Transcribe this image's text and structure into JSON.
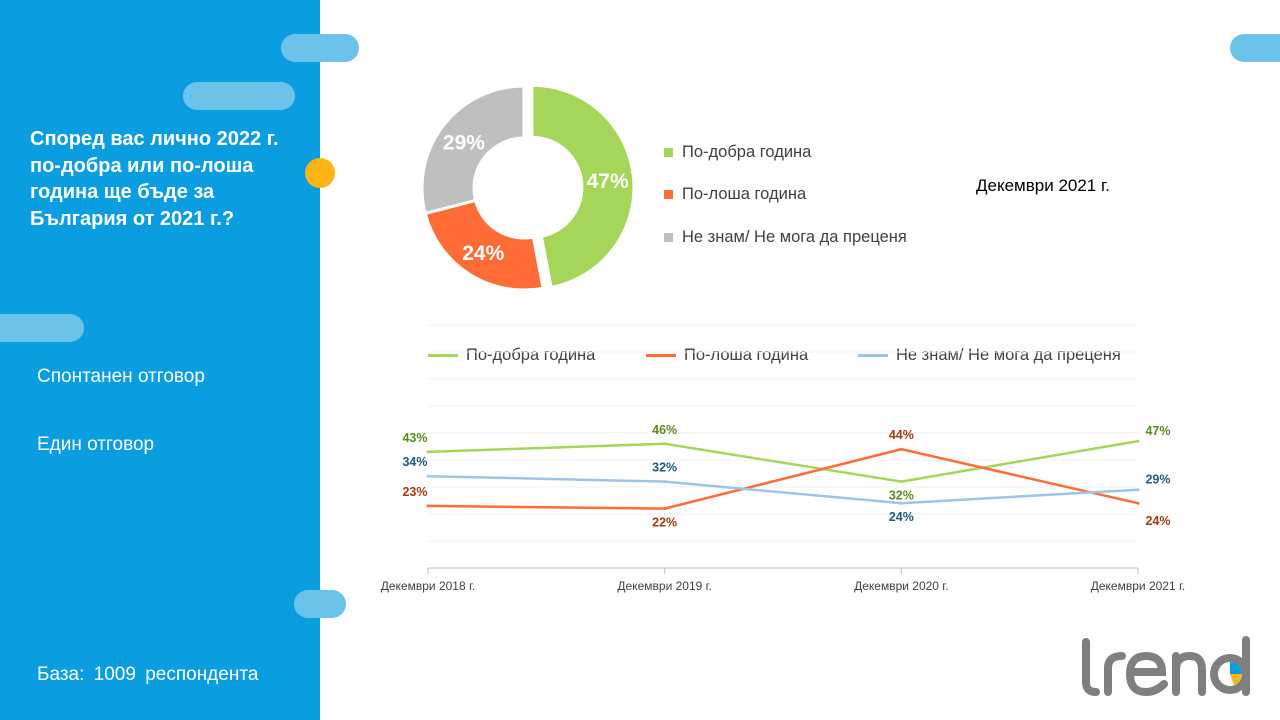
{
  "question": "Според вас лично 2022 г. по-добра или по-лоша година ще бъде за България от 2021 г.?",
  "notes": [
    "Спонтанен отговор",
    "Един отговор"
  ],
  "base": "База:  1009  респондента",
  "period_label": "Декември 2021 г.",
  "brand": "trend",
  "colors": {
    "better": "#a5d65a",
    "worse": "#ff6c36",
    "dontknow": "#bfbfbf",
    "dontknow_line": "#9dc3e6",
    "sidebar": "#0a9ee0",
    "accent": "#fdb515"
  },
  "chart_data": [
    {
      "type": "pie",
      "subtype": "donut",
      "categories": [
        "По-добра година",
        "По-лоша година",
        "Не знам/ Не мога да преценя"
      ],
      "values": [
        47,
        24,
        29
      ],
      "labels": [
        "47%",
        "24%",
        "29%"
      ],
      "legend": "right"
    },
    {
      "type": "line",
      "x": [
        "Декември 2018 г.",
        "Декември 2019 г.",
        "Декември 2020 г.",
        "Декември 2021 г."
      ],
      "series": [
        {
          "name": "По-добра година",
          "values": [
            43,
            46,
            32,
            47
          ],
          "labels": [
            "43%",
            "46%",
            "32%",
            "47%"
          ]
        },
        {
          "name": "По-лоша година",
          "values": [
            23,
            22,
            44,
            24
          ],
          "labels": [
            "23%",
            "22%",
            "44%",
            "24%"
          ]
        },
        {
          "name": "Не знам/ Не мога да преценя",
          "values": [
            34,
            32,
            24,
            29
          ],
          "labels": [
            "34%",
            "32%",
            "24%",
            "29%"
          ]
        }
      ],
      "ylim": [
        0,
        90
      ],
      "legend": "top",
      "grid": true
    }
  ]
}
